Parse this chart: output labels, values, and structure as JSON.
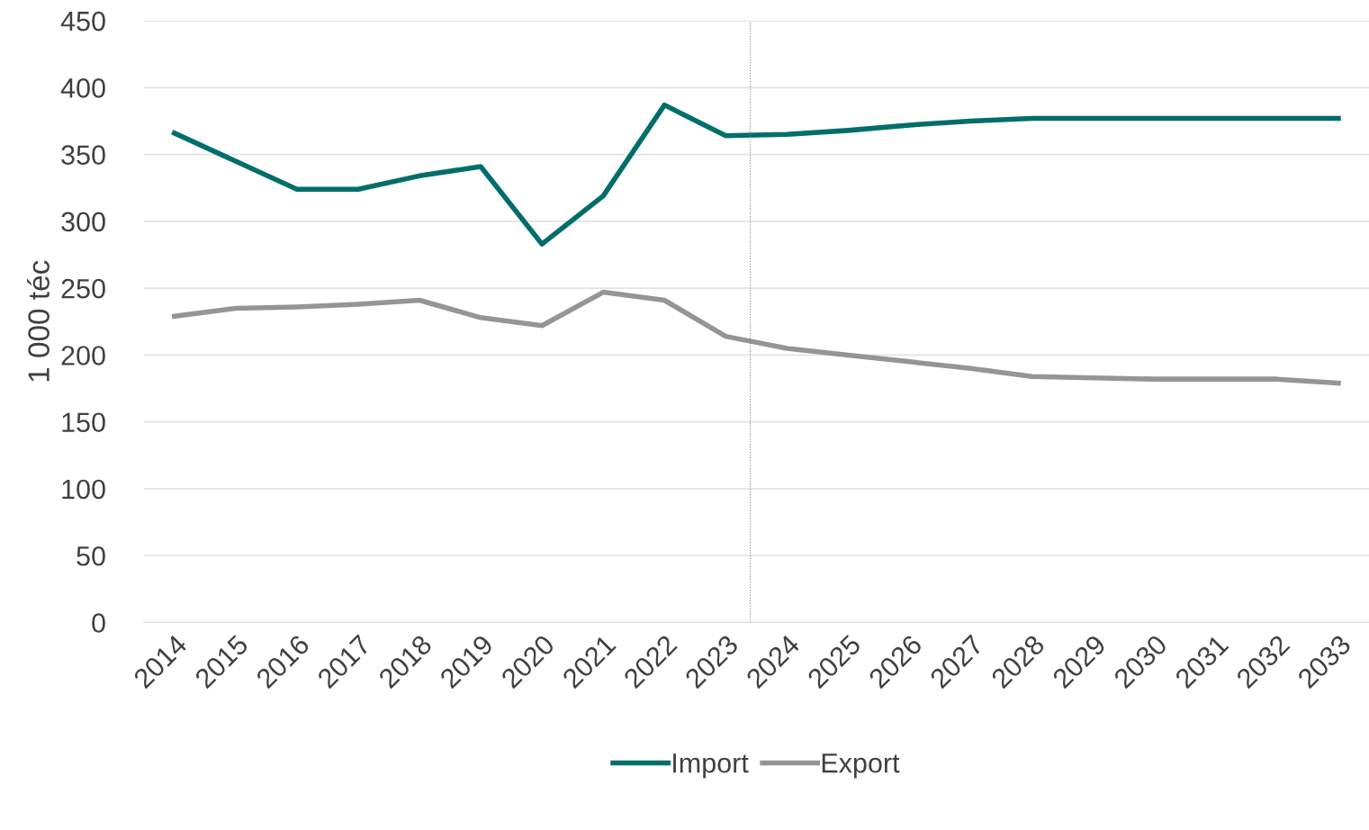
{
  "chart_data": {
    "type": "line",
    "ylabel": "1 000 téc",
    "x": [
      2014,
      2015,
      2016,
      2017,
      2018,
      2019,
      2020,
      2021,
      2022,
      2023,
      2024,
      2025,
      2026,
      2027,
      2028,
      2029,
      2030,
      2031,
      2032,
      2033
    ],
    "xlim": [
      2013.5,
      2033.5
    ],
    "xticks": [
      2014,
      2015,
      2016,
      2017,
      2018,
      2019,
      2020,
      2021,
      2022,
      2023,
      2024,
      2025,
      2026,
      2027,
      2028,
      2029,
      2030,
      2031,
      2032,
      2033
    ],
    "ylim": [
      0,
      450
    ],
    "yticks": [
      0,
      50,
      100,
      150,
      200,
      250,
      300,
      350,
      400,
      450
    ],
    "series": [
      {
        "name": "Import",
        "color": "#006e6a",
        "values": [
          366,
          345,
          324,
          324,
          334,
          341,
          283,
          319,
          387,
          364,
          365,
          368,
          372,
          375,
          377,
          377,
          377,
          377,
          377,
          377
        ]
      },
      {
        "name": "Export",
        "color": "#939598",
        "values": [
          229,
          235,
          236,
          238,
          241,
          228,
          222,
          247,
          241,
          214,
          205,
          200,
          195,
          190,
          184,
          183,
          182,
          182,
          182,
          179
        ]
      }
    ],
    "ref_lines": [
      {
        "axis": "x",
        "value": 2023.4,
        "color": "#808080",
        "line_style": "dotted"
      }
    ],
    "grid": "y",
    "legend": "bottom",
    "marker": "none",
    "line_style": "solid"
  }
}
